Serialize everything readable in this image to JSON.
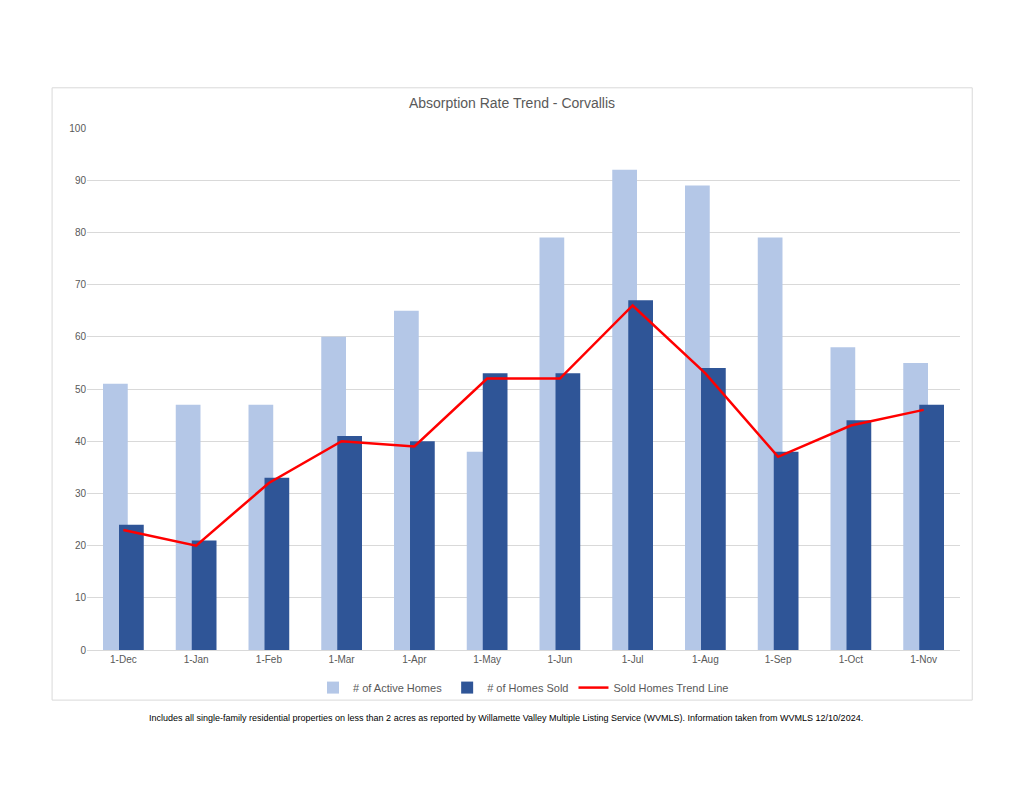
{
  "chart_data": {
    "type": "bar",
    "title": "Absorption Rate Trend - Corvallis",
    "categories": [
      "1-Dec",
      "1-Jan",
      "1-Feb",
      "1-Mar",
      "1-Apr",
      "1-May",
      "1-Jun",
      "1-Jul",
      "1-Aug",
      "1-Sep",
      "1-Oct",
      "1-Nov"
    ],
    "series": [
      {
        "name": "# of Active Homes",
        "type": "bar",
        "color": "#b4c7e7",
        "values": [
          51,
          47,
          47,
          60,
          65,
          38,
          79,
          92,
          89,
          79,
          58,
          55
        ]
      },
      {
        "name": "# of Homes Sold",
        "type": "bar",
        "color": "#2f5597",
        "values": [
          24,
          21,
          33,
          41,
          40,
          53,
          53,
          67,
          54,
          38,
          44,
          47
        ]
      },
      {
        "name": "Sold Homes Trend Line",
        "type": "line",
        "color": "#ff0000",
        "values": [
          23,
          20,
          32,
          40,
          39,
          52,
          52,
          66,
          53,
          37,
          43,
          46
        ]
      }
    ],
    "ylim": [
      0,
      100
    ],
    "yticks": [
      0,
      10,
      20,
      30,
      40,
      50,
      60,
      70,
      80,
      90,
      100
    ],
    "grid": true,
    "legend": "bottom",
    "annotations": [
      "Includes all single-family residential properties on less than 2 acres as reported by Willamette Valley Multiple Listing Service (WVMLS). Information taken from WVMLS 12/10/2024."
    ]
  }
}
